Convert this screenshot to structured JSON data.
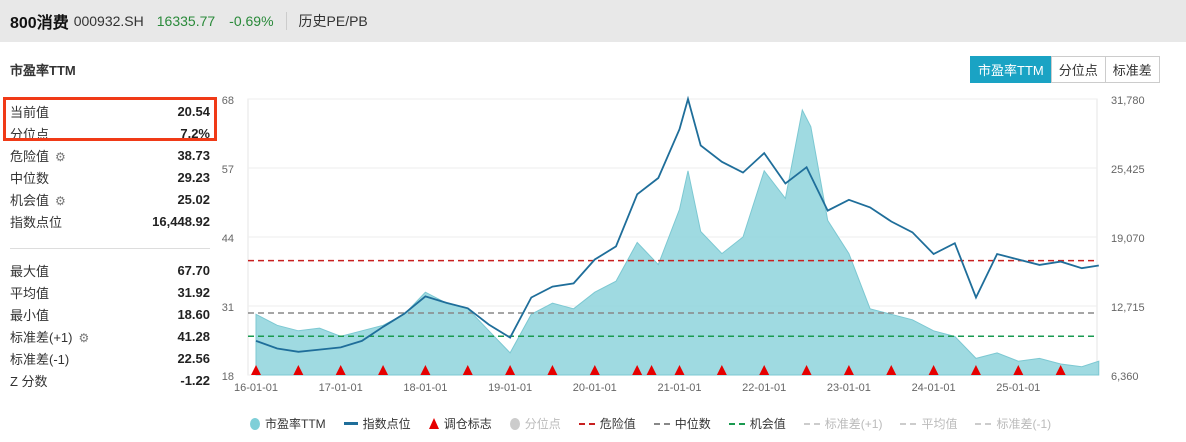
{
  "header": {
    "name": "800消费",
    "code": "000932.SH",
    "price": "16335.77",
    "change": "-0.69%",
    "link": "历史PE/PB"
  },
  "chart_title": "市盈率TTM",
  "tabs": [
    {
      "label": "市盈率TTM",
      "active": true
    },
    {
      "label": "分位点",
      "active": false
    },
    {
      "label": "标准差",
      "active": false
    }
  ],
  "stats_top": [
    {
      "label": "当前值",
      "value": "20.54",
      "gear": false
    },
    {
      "label": "分位点",
      "value": "7.2%",
      "gear": false
    },
    {
      "label": "危险值",
      "value": "38.73",
      "gear": true
    },
    {
      "label": "中位数",
      "value": "29.23",
      "gear": false
    },
    {
      "label": "机会值",
      "value": "25.02",
      "gear": true
    },
    {
      "label": "指数点位",
      "value": "16,448.92",
      "gear": false
    }
  ],
  "stats_bottom": [
    {
      "label": "最大值",
      "value": "67.70",
      "gear": false
    },
    {
      "label": "平均值",
      "value": "31.92",
      "gear": false
    },
    {
      "label": "最小值",
      "value": "18.60",
      "gear": false
    },
    {
      "label": "标准差(+1)",
      "value": "41.28",
      "gear": true
    },
    {
      "label": "标准差(-1)",
      "value": "22.56",
      "gear": false
    },
    {
      "label": "Z 分数",
      "value": "-1.22",
      "gear": false
    }
  ],
  "legend": [
    {
      "label": "市盈率TTM",
      "type": "dot",
      "color": "#7fcfd8",
      "on": true
    },
    {
      "label": "指数点位",
      "type": "line",
      "color": "#1f6e9a",
      "on": true
    },
    {
      "label": "调仓标志",
      "type": "tri",
      "color": "#e60000",
      "on": true
    },
    {
      "label": "分位点",
      "type": "dot",
      "color": "#ccc",
      "on": false
    },
    {
      "label": "危险值",
      "type": "dash",
      "color": "#c82020",
      "on": true
    },
    {
      "label": "中位数",
      "type": "dash",
      "color": "#888",
      "on": true
    },
    {
      "label": "机会值",
      "type": "dash",
      "color": "#1a9a50",
      "on": true
    },
    {
      "label": "标准差(+1)",
      "type": "dash",
      "color": "#ccc",
      "on": false
    },
    {
      "label": "平均值",
      "type": "dash",
      "color": "#ccc",
      "on": false
    },
    {
      "label": "标准差(-1)",
      "type": "dash",
      "color": "#ccc",
      "on": false
    }
  ],
  "chart_data": {
    "type": "area",
    "title": "市盈率TTM",
    "x_ticks": [
      "16-01-01",
      "17-01-01",
      "18-01-01",
      "19-01-01",
      "20-01-01",
      "21-01-01",
      "22-01-01",
      "23-01-01",
      "24-01-01",
      "25-01-01"
    ],
    "y_left": {
      "ticks": [
        "68",
        "57",
        "44",
        "31",
        "18"
      ],
      "range": [
        18,
        68
      ]
    },
    "y_right": {
      "ticks": [
        "31,780",
        "25,425",
        "19,070",
        "12,715",
        "6,360"
      ],
      "range": [
        6360,
        31780
      ]
    },
    "x_range": [
      2016.0,
      2025.95
    ],
    "reference_lines": {
      "danger": 38.73,
      "median": 29.23,
      "opportunity": 25.02
    },
    "pe": {
      "x": [
        2016.0,
        2016.25,
        2016.5,
        2016.75,
        2017.0,
        2017.25,
        2017.5,
        2017.75,
        2018.0,
        2018.25,
        2018.5,
        2018.75,
        2019.0,
        2019.25,
        2019.5,
        2019.75,
        2020.0,
        2020.25,
        2020.5,
        2020.75,
        2021.0,
        2021.1,
        2021.25,
        2021.5,
        2021.75,
        2022.0,
        2022.25,
        2022.45,
        2022.55,
        2022.75,
        2023.0,
        2023.25,
        2023.5,
        2023.75,
        2024.0,
        2024.25,
        2024.5,
        2024.75,
        2025.0,
        2025.25,
        2025.5,
        2025.75,
        2025.95
      ],
      "y": [
        29,
        27,
        26,
        26.5,
        25,
        26,
        27,
        29,
        33,
        31,
        30,
        26,
        22,
        29,
        31,
        30,
        33,
        35,
        42,
        38,
        48,
        55,
        44,
        40,
        43,
        55,
        50,
        66,
        63,
        46,
        40,
        30,
        29,
        28,
        26,
        25,
        21,
        22,
        20.5,
        21,
        20,
        19.5,
        20.5
      ]
    },
    "index": {
      "x": [
        2016.0,
        2016.25,
        2016.5,
        2016.75,
        2017.0,
        2017.25,
        2017.5,
        2017.75,
        2018.0,
        2018.25,
        2018.5,
        2018.75,
        2019.0,
        2019.25,
        2019.5,
        2019.75,
        2020.0,
        2020.25,
        2020.5,
        2020.75,
        2021.0,
        2021.1,
        2021.25,
        2021.5,
        2021.75,
        2022.0,
        2022.25,
        2022.5,
        2022.75,
        2023.0,
        2023.25,
        2023.5,
        2023.75,
        2024.0,
        2024.25,
        2024.5,
        2024.75,
        2025.0,
        2025.25,
        2025.5,
        2025.75,
        2025.95
      ],
      "y": [
        9500,
        8800,
        8500,
        8700,
        8900,
        9500,
        10800,
        12000,
        13600,
        13000,
        12500,
        11000,
        9800,
        13500,
        14500,
        14800,
        17000,
        18200,
        23000,
        24500,
        29000,
        31780,
        27500,
        26000,
        25000,
        26800,
        24000,
        25500,
        21500,
        22500,
        21800,
        20500,
        19500,
        17500,
        18500,
        13500,
        17500,
        17000,
        16500,
        16800,
        16200,
        16448
      ]
    },
    "rebalance_markers": [
      2016.0,
      2016.5,
      2017.0,
      2017.5,
      2018.0,
      2018.5,
      2019.0,
      2019.5,
      2020.0,
      2020.5,
      2020.67,
      2021.0,
      2021.5,
      2022.0,
      2022.5,
      2023.0,
      2023.5,
      2024.0,
      2024.5,
      2025.0,
      2025.5
    ]
  }
}
